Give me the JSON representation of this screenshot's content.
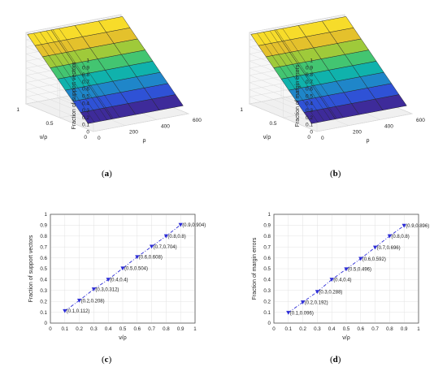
{
  "captions": {
    "a": "a",
    "b": "b",
    "c": "c",
    "d": "d"
  },
  "chart_data": [
    {
      "panel": "a",
      "type": "surface",
      "zlabel": "Fraction of support vectors",
      "xlabel": "ρ",
      "ylabel": "ν/ρ",
      "x_ticks": [
        "0",
        "200",
        "400",
        "600"
      ],
      "y_ticks": [
        "0",
        "0.5",
        "1"
      ],
      "z_ticks": [
        "0",
        "0.1",
        "0.2",
        "0.3",
        "0.4",
        "0.5",
        "0.6",
        "0.7",
        "0.8",
        "0.9",
        "1"
      ],
      "xlim": [
        0,
        600
      ],
      "ylim": [
        0,
        1
      ],
      "zlim": [
        0,
        1
      ],
      "surface": "z ≈ ν/ρ (independent of ρ)",
      "colormap": [
        "#3e2b9a",
        "#2f52d6",
        "#1f86c9",
        "#10b2ac",
        "#43c571",
        "#9fca3a",
        "#e4c12c",
        "#f7dc2a"
      ]
    },
    {
      "panel": "b",
      "type": "surface",
      "zlabel": "Fraction of margin errors",
      "xlabel": "ρ",
      "ylabel": "ν/ρ",
      "x_ticks": [
        "0",
        "200",
        "400",
        "600"
      ],
      "y_ticks": [
        "0",
        "0.5",
        "1"
      ],
      "z_ticks": [
        "0",
        "0.1",
        "0.2",
        "0.3",
        "0.4",
        "0.5",
        "0.6",
        "0.7",
        "0.8",
        "0.9",
        "1"
      ],
      "xlim": [
        0,
        600
      ],
      "ylim": [
        0,
        1
      ],
      "zlim": [
        0,
        1
      ],
      "surface": "z ≈ ν/ρ (independent of ρ)",
      "colormap": [
        "#3e2b9a",
        "#2f52d6",
        "#1f86c9",
        "#10b2ac",
        "#43c571",
        "#9fca3a",
        "#e4c12c",
        "#f7dc2a"
      ]
    },
    {
      "panel": "c",
      "type": "line",
      "xlabel": "ν/ρ",
      "ylabel": "Fraction of support vectors",
      "xlim": [
        0,
        1
      ],
      "ylim": [
        0,
        1
      ],
      "x_ticks": [
        "0",
        "0.1",
        "0.2",
        "0.3",
        "0.4",
        "0.5",
        "0.6",
        "0.7",
        "0.8",
        "0.9",
        "1"
      ],
      "y_ticks": [
        "0",
        "0.1",
        "0.2",
        "0.3",
        "0.4",
        "0.5",
        "0.6",
        "0.7",
        "0.8",
        "0.9",
        "1"
      ],
      "grid": true,
      "series_color": "#2b2bd6",
      "points": [
        {
          "x": 0.1,
          "y": 0.112,
          "label": "(0.1,0.112)"
        },
        {
          "x": 0.2,
          "y": 0.208,
          "label": "(0.2,0.208)"
        },
        {
          "x": 0.3,
          "y": 0.312,
          "label": "(0.3,0.312)"
        },
        {
          "x": 0.4,
          "y": 0.4,
          "label": "(0.4,0.4)"
        },
        {
          "x": 0.5,
          "y": 0.504,
          "label": "(0.5,0.504)"
        },
        {
          "x": 0.6,
          "y": 0.608,
          "label": "(0.6,0.608)"
        },
        {
          "x": 0.7,
          "y": 0.704,
          "label": "(0.7,0.704)"
        },
        {
          "x": 0.8,
          "y": 0.8,
          "label": "(0.8,0.8)"
        },
        {
          "x": 0.9,
          "y": 0.904,
          "label": "(0.9,0.904)"
        }
      ]
    },
    {
      "panel": "d",
      "type": "line",
      "xlabel": "ν/ρ",
      "ylabel": "Fraction of margin errors",
      "xlim": [
        0,
        1
      ],
      "ylim": [
        0,
        1
      ],
      "x_ticks": [
        "0",
        "0.1",
        "0.2",
        "0.3",
        "0.4",
        "0.5",
        "0.6",
        "0.7",
        "0.8",
        "0.9",
        "1"
      ],
      "y_ticks": [
        "0",
        "0.1",
        "0.2",
        "0.3",
        "0.4",
        "0.5",
        "0.6",
        "0.7",
        "0.8",
        "0.9",
        "1"
      ],
      "grid": true,
      "series_color": "#2b2bd6",
      "points": [
        {
          "x": 0.1,
          "y": 0.096,
          "label": "(0.1,0.096)"
        },
        {
          "x": 0.2,
          "y": 0.192,
          "label": "(0.2,0.192)"
        },
        {
          "x": 0.3,
          "y": 0.288,
          "label": "(0.3,0.288)"
        },
        {
          "x": 0.4,
          "y": 0.4,
          "label": "(0.4,0.4)"
        },
        {
          "x": 0.5,
          "y": 0.496,
          "label": "(0.5,0.496)"
        },
        {
          "x": 0.6,
          "y": 0.592,
          "label": "(0.6,0.592)"
        },
        {
          "x": 0.7,
          "y": 0.696,
          "label": "(0.7,0.696)"
        },
        {
          "x": 0.8,
          "y": 0.8,
          "label": "(0.8,0.8)"
        },
        {
          "x": 0.9,
          "y": 0.896,
          "label": "(0.9,0.896)"
        }
      ]
    }
  ]
}
